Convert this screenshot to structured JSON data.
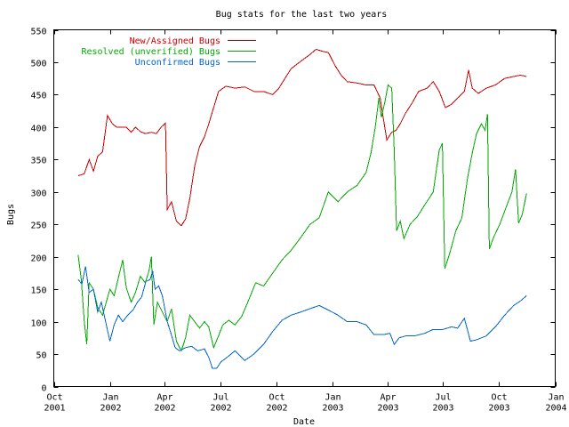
{
  "chart_data": {
    "type": "line",
    "title": "Bug stats for the last two years",
    "xlabel": "Date",
    "ylabel": "Bugs",
    "grid": false,
    "legend_position": "top-left",
    "xlim": [
      "2001-10-01",
      "2004-01-01"
    ],
    "ylim": [
      0,
      550
    ],
    "x_ticks": [
      {
        "date": "2001-10-01",
        "line1": "Oct",
        "line2": "2001"
      },
      {
        "date": "2002-01-01",
        "line1": "Jan",
        "line2": "2002"
      },
      {
        "date": "2002-04-01",
        "line1": "Apr",
        "line2": "2002"
      },
      {
        "date": "2002-07-01",
        "line1": "Jul",
        "line2": "2002"
      },
      {
        "date": "2002-10-01",
        "line1": "Oct",
        "line2": "2002"
      },
      {
        "date": "2003-01-01",
        "line1": "Jan",
        "line2": "2003"
      },
      {
        "date": "2003-04-01",
        "line1": "Apr",
        "line2": "2003"
      },
      {
        "date": "2003-07-01",
        "line1": "Jul",
        "line2": "2003"
      },
      {
        "date": "2003-10-01",
        "line1": "Oct",
        "line2": "2003"
      },
      {
        "date": "2004-01-01",
        "line1": "Jan",
        "line2": "2004"
      }
    ],
    "y_ticks": [
      0,
      50,
      100,
      150,
      200,
      250,
      300,
      350,
      400,
      450,
      500,
      550
    ],
    "series": [
      {
        "name": "New/Assigned Bugs",
        "color": "#cc0000",
        "points": [
          [
            "2001-11-10",
            325
          ],
          [
            "2001-11-20",
            328
          ],
          [
            "2001-11-28",
            350
          ],
          [
            "2001-12-05",
            332
          ],
          [
            "2001-12-12",
            355
          ],
          [
            "2001-12-20",
            362
          ],
          [
            "2001-12-28",
            418
          ],
          [
            "2002-01-05",
            405
          ],
          [
            "2002-01-12",
            400
          ],
          [
            "2002-01-20",
            400
          ],
          [
            "2002-01-28",
            400
          ],
          [
            "2002-02-05",
            392
          ],
          [
            "2002-02-12",
            400
          ],
          [
            "2002-02-20",
            393
          ],
          [
            "2002-02-28",
            390
          ],
          [
            "2002-03-10",
            392
          ],
          [
            "2002-03-18",
            390
          ],
          [
            "2002-03-26",
            400
          ],
          [
            "2002-04-02",
            406
          ],
          [
            "2002-04-05",
            273
          ],
          [
            "2002-04-12",
            285
          ],
          [
            "2002-04-20",
            255
          ],
          [
            "2002-04-28",
            248
          ],
          [
            "2002-05-05",
            258
          ],
          [
            "2002-05-12",
            290
          ],
          [
            "2002-05-20",
            340
          ],
          [
            "2002-05-28",
            370
          ],
          [
            "2002-06-05",
            385
          ],
          [
            "2002-06-12",
            405
          ],
          [
            "2002-06-20",
            430
          ],
          [
            "2002-06-28",
            455
          ],
          [
            "2002-07-10",
            463
          ],
          [
            "2002-07-25",
            460
          ],
          [
            "2002-08-10",
            462
          ],
          [
            "2002-08-25",
            455
          ],
          [
            "2002-09-10",
            455
          ],
          [
            "2002-09-25",
            450
          ],
          [
            "2002-10-05",
            460
          ],
          [
            "2002-10-15",
            475
          ],
          [
            "2002-10-25",
            490
          ],
          [
            "2002-11-05",
            498
          ],
          [
            "2002-11-15",
            505
          ],
          [
            "2002-11-25",
            512
          ],
          [
            "2002-12-05",
            520
          ],
          [
            "2002-12-15",
            517
          ],
          [
            "2002-12-25",
            515
          ],
          [
            "2003-01-05",
            495
          ],
          [
            "2003-01-15",
            480
          ],
          [
            "2003-01-25",
            470
          ],
          [
            "2003-02-10",
            468
          ],
          [
            "2003-02-25",
            465
          ],
          [
            "2003-03-10",
            465
          ],
          [
            "2003-03-20",
            445
          ],
          [
            "2003-03-25",
            415
          ],
          [
            "2003-03-31",
            380
          ],
          [
            "2003-04-08",
            392
          ],
          [
            "2003-04-15",
            395
          ],
          [
            "2003-04-22",
            405
          ],
          [
            "2003-05-01",
            422
          ],
          [
            "2003-05-12",
            438
          ],
          [
            "2003-05-22",
            455
          ],
          [
            "2003-06-05",
            460
          ],
          [
            "2003-06-15",
            470
          ],
          [
            "2003-06-25",
            455
          ],
          [
            "2003-07-05",
            430
          ],
          [
            "2003-07-15",
            435
          ],
          [
            "2003-07-25",
            445
          ],
          [
            "2003-08-05",
            455
          ],
          [
            "2003-08-12",
            488
          ],
          [
            "2003-08-18",
            460
          ],
          [
            "2003-08-28",
            452
          ],
          [
            "2003-09-10",
            460
          ],
          [
            "2003-09-25",
            465
          ],
          [
            "2003-10-10",
            475
          ],
          [
            "2003-10-25",
            478
          ],
          [
            "2003-11-05",
            480
          ],
          [
            "2003-11-15",
            478
          ]
        ]
      },
      {
        "name": "Resolved (unverified) Bugs",
        "color": "#00aa00",
        "points": [
          [
            "2001-11-10",
            203
          ],
          [
            "2001-11-15",
            165
          ],
          [
            "2001-11-20",
            100
          ],
          [
            "2001-11-24",
            65
          ],
          [
            "2001-11-28",
            160
          ],
          [
            "2001-12-05",
            150
          ],
          [
            "2001-12-12",
            122
          ],
          [
            "2001-12-20",
            110
          ],
          [
            "2002-01-01",
            150
          ],
          [
            "2002-01-08",
            140
          ],
          [
            "2002-01-15",
            168
          ],
          [
            "2002-01-22",
            195
          ],
          [
            "2002-01-28",
            152
          ],
          [
            "2002-02-05",
            130
          ],
          [
            "2002-02-12",
            145
          ],
          [
            "2002-02-20",
            170
          ],
          [
            "2002-02-28",
            160
          ],
          [
            "2002-03-06",
            178
          ],
          [
            "2002-03-10",
            200
          ],
          [
            "2002-03-14",
            95
          ],
          [
            "2002-03-20",
            130
          ],
          [
            "2002-03-28",
            115
          ],
          [
            "2002-04-05",
            100
          ],
          [
            "2002-04-12",
            120
          ],
          [
            "2002-04-20",
            70
          ],
          [
            "2002-04-28",
            55
          ],
          [
            "2002-05-05",
            75
          ],
          [
            "2002-05-12",
            110
          ],
          [
            "2002-05-20",
            100
          ],
          [
            "2002-05-28",
            90
          ],
          [
            "2002-06-05",
            100
          ],
          [
            "2002-06-12",
            92
          ],
          [
            "2002-06-20",
            60
          ],
          [
            "2002-06-28",
            78
          ],
          [
            "2002-07-05",
            95
          ],
          [
            "2002-07-15",
            102
          ],
          [
            "2002-07-25",
            95
          ],
          [
            "2002-08-05",
            108
          ],
          [
            "2002-08-15",
            130
          ],
          [
            "2002-08-28",
            160
          ],
          [
            "2002-09-10",
            155
          ],
          [
            "2002-09-25",
            175
          ],
          [
            "2002-10-10",
            195
          ],
          [
            "2002-10-25",
            210
          ],
          [
            "2002-11-10",
            230
          ],
          [
            "2002-11-25",
            250
          ],
          [
            "2002-12-10",
            260
          ],
          [
            "2002-12-25",
            300
          ],
          [
            "2003-01-10",
            285
          ],
          [
            "2003-01-25",
            300
          ],
          [
            "2003-02-10",
            310
          ],
          [
            "2003-02-25",
            330
          ],
          [
            "2003-03-05",
            360
          ],
          [
            "2003-03-12",
            400
          ],
          [
            "2003-03-18",
            445
          ],
          [
            "2003-03-22",
            415
          ],
          [
            "2003-03-28",
            440
          ],
          [
            "2003-04-02",
            465
          ],
          [
            "2003-04-08",
            460
          ],
          [
            "2003-04-12",
            365
          ],
          [
            "2003-04-16",
            240
          ],
          [
            "2003-04-22",
            255
          ],
          [
            "2003-04-28",
            228
          ],
          [
            "2003-05-08",
            250
          ],
          [
            "2003-05-20",
            262
          ],
          [
            "2003-06-01",
            280
          ],
          [
            "2003-06-15",
            300
          ],
          [
            "2003-06-25",
            365
          ],
          [
            "2003-06-30",
            375
          ],
          [
            "2003-07-04",
            182
          ],
          [
            "2003-07-12",
            205
          ],
          [
            "2003-07-22",
            240
          ],
          [
            "2003-08-01",
            260
          ],
          [
            "2003-08-10",
            320
          ],
          [
            "2003-08-18",
            360
          ],
          [
            "2003-08-25",
            390
          ],
          [
            "2003-09-02",
            405
          ],
          [
            "2003-09-08",
            395
          ],
          [
            "2003-09-12",
            420
          ],
          [
            "2003-09-15",
            212
          ],
          [
            "2003-09-22",
            230
          ],
          [
            "2003-10-02",
            250
          ],
          [
            "2003-10-12",
            275
          ],
          [
            "2003-10-22",
            300
          ],
          [
            "2003-10-28",
            335
          ],
          [
            "2003-11-02",
            252
          ],
          [
            "2003-11-08",
            265
          ],
          [
            "2003-11-15",
            298
          ]
        ]
      },
      {
        "name": "Unconfirmed Bugs",
        "color": "#0066cc",
        "points": [
          [
            "2001-11-10",
            165
          ],
          [
            "2001-11-16",
            158
          ],
          [
            "2001-11-22",
            185
          ],
          [
            "2001-11-28",
            145
          ],
          [
            "2001-12-05",
            150
          ],
          [
            "2001-12-12",
            115
          ],
          [
            "2001-12-18",
            130
          ],
          [
            "2001-12-25",
            100
          ],
          [
            "2002-01-01",
            70
          ],
          [
            "2002-01-08",
            95
          ],
          [
            "2002-01-15",
            110
          ],
          [
            "2002-01-22",
            100
          ],
          [
            "2002-01-30",
            110
          ],
          [
            "2002-02-08",
            118
          ],
          [
            "2002-02-15",
            130
          ],
          [
            "2002-02-22",
            138
          ],
          [
            "2002-03-01",
            162
          ],
          [
            "2002-03-08",
            165
          ],
          [
            "2002-03-12",
            178
          ],
          [
            "2002-03-16",
            150
          ],
          [
            "2002-03-22",
            155
          ],
          [
            "2002-03-28",
            140
          ],
          [
            "2002-04-05",
            100
          ],
          [
            "2002-04-10",
            85
          ],
          [
            "2002-04-18",
            60
          ],
          [
            "2002-04-25",
            55
          ],
          [
            "2002-05-05",
            60
          ],
          [
            "2002-05-15",
            62
          ],
          [
            "2002-05-25",
            55
          ],
          [
            "2002-06-05",
            58
          ],
          [
            "2002-06-12",
            45
          ],
          [
            "2002-06-18",
            28
          ],
          [
            "2002-06-25",
            28
          ],
          [
            "2002-07-02",
            38
          ],
          [
            "2002-07-12",
            45
          ],
          [
            "2002-07-25",
            55
          ],
          [
            "2002-08-10",
            40
          ],
          [
            "2002-08-25",
            50
          ],
          [
            "2002-09-10",
            65
          ],
          [
            "2002-09-25",
            85
          ],
          [
            "2002-10-10",
            102
          ],
          [
            "2002-10-25",
            110
          ],
          [
            "2002-11-10",
            115
          ],
          [
            "2002-11-25",
            120
          ],
          [
            "2002-12-10",
            125
          ],
          [
            "2002-12-25",
            118
          ],
          [
            "2003-01-10",
            110
          ],
          [
            "2003-01-25",
            100
          ],
          [
            "2003-02-10",
            100
          ],
          [
            "2003-02-25",
            95
          ],
          [
            "2003-03-10",
            80
          ],
          [
            "2003-03-25",
            80
          ],
          [
            "2003-04-05",
            82
          ],
          [
            "2003-04-12",
            65
          ],
          [
            "2003-04-20",
            75
          ],
          [
            "2003-05-01",
            78
          ],
          [
            "2003-05-15",
            78
          ],
          [
            "2003-06-01",
            82
          ],
          [
            "2003-06-15",
            88
          ],
          [
            "2003-07-01",
            88
          ],
          [
            "2003-07-15",
            92
          ],
          [
            "2003-07-25",
            90
          ],
          [
            "2003-08-05",
            105
          ],
          [
            "2003-08-10",
            88
          ],
          [
            "2003-08-15",
            70
          ],
          [
            "2003-08-25",
            72
          ],
          [
            "2003-09-10",
            78
          ],
          [
            "2003-09-25",
            92
          ],
          [
            "2003-10-10",
            110
          ],
          [
            "2003-10-25",
            125
          ],
          [
            "2003-11-05",
            132
          ],
          [
            "2003-11-15",
            140
          ]
        ]
      }
    ]
  }
}
